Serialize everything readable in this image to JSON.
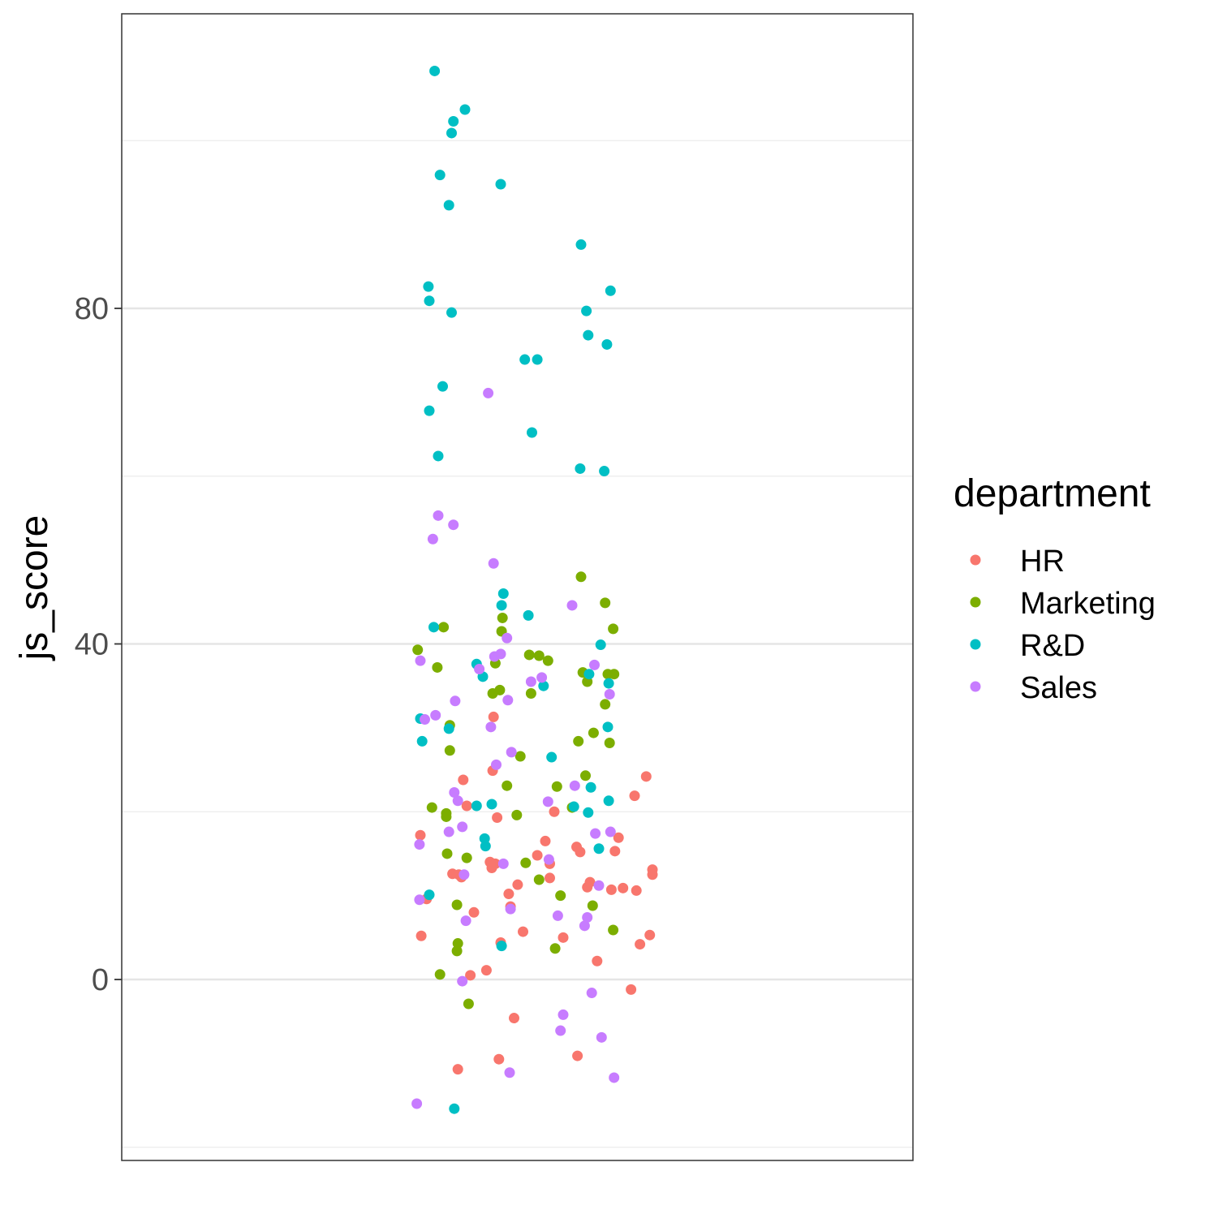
{
  "chart_data": {
    "type": "scatter",
    "ylabel": "js_score",
    "xlabel": "",
    "ylim": [
      -20,
      117
    ],
    "yticks": [
      0,
      40,
      80
    ],
    "minor_gridlines": [
      -20,
      20,
      60,
      100
    ],
    "grid": true,
    "legend": {
      "title": "department",
      "position": "right"
    },
    "series": [
      {
        "name": "HR",
        "color": "#F8766D",
        "points": [
          {
            "x": 0.1,
            "y": 17.2
          },
          {
            "x": 0.17,
            "y": 9.6
          },
          {
            "x": 0.53,
            "y": 12.5
          },
          {
            "x": 0.46,
            "y": 12.6
          },
          {
            "x": 0.11,
            "y": 5.2
          },
          {
            "x": 0.58,
            "y": 23.8
          },
          {
            "x": 0.62,
            "y": 20.7
          },
          {
            "x": 0.56,
            "y": 12.2
          },
          {
            "x": 0.7,
            "y": 8.0
          },
          {
            "x": 0.66,
            "y": 0.5
          },
          {
            "x": 0.92,
            "y": 31.3
          },
          {
            "x": 0.91,
            "y": 24.9
          },
          {
            "x": 0.88,
            "y": 14.0
          },
          {
            "x": 0.94,
            "y": 13.8
          },
          {
            "x": 0.96,
            "y": 19.3
          },
          {
            "x": 0.9,
            "y": 13.3
          },
          {
            "x": 1.09,
            "y": 10.2
          },
          {
            "x": 1.11,
            "y": 8.7
          },
          {
            "x": 1.0,
            "y": 4.4
          },
          {
            "x": 0.84,
            "y": 1.1
          },
          {
            "x": 1.19,
            "y": 11.3
          },
          {
            "x": 1.25,
            "y": 5.7
          },
          {
            "x": 1.15,
            "y": -4.6
          },
          {
            "x": 0.98,
            "y": -9.5
          },
          {
            "x": 0.52,
            "y": -10.7
          },
          {
            "x": 1.41,
            "y": 14.8
          },
          {
            "x": 1.5,
            "y": 16.5
          },
          {
            "x": 1.55,
            "y": 13.8
          },
          {
            "x": 1.55,
            "y": 12.1
          },
          {
            "x": 1.6,
            "y": 20.0
          },
          {
            "x": 1.7,
            "y": 5.0
          },
          {
            "x": 1.85,
            "y": 15.8
          },
          {
            "x": 1.89,
            "y": 15.2
          },
          {
            "x": 1.97,
            "y": 11.0
          },
          {
            "x": 2.0,
            "y": 11.6
          },
          {
            "x": 1.86,
            "y": -9.1
          },
          {
            "x": 2.08,
            "y": 2.2
          },
          {
            "x": 2.24,
            "y": 10.7
          },
          {
            "x": 2.28,
            "y": 15.3
          },
          {
            "x": 2.32,
            "y": 16.9
          },
          {
            "x": 2.37,
            "y": 10.9
          },
          {
            "x": 2.46,
            "y": -1.2
          },
          {
            "x": 2.5,
            "y": 21.9
          },
          {
            "x": 2.52,
            "y": 10.6
          },
          {
            "x": 2.56,
            "y": 4.2
          },
          {
            "x": 2.63,
            "y": 24.2
          },
          {
            "x": 2.67,
            "y": 5.3
          },
          {
            "x": 2.7,
            "y": 13.1
          },
          {
            "x": 2.7,
            "y": 12.5
          }
        ]
      },
      {
        "name": "Marketing",
        "color": "#7CAE00",
        "points": [
          {
            "x": 0.07,
            "y": 39.3
          },
          {
            "x": 0.36,
            "y": 42.0
          },
          {
            "x": 0.29,
            "y": 37.2
          },
          {
            "x": 0.23,
            "y": 20.5
          },
          {
            "x": 0.43,
            "y": 30.3
          },
          {
            "x": 0.43,
            "y": 27.3
          },
          {
            "x": 0.39,
            "y": 19.8
          },
          {
            "x": 0.39,
            "y": 19.4
          },
          {
            "x": 0.4,
            "y": 15.0
          },
          {
            "x": 0.51,
            "y": 8.9
          },
          {
            "x": 0.52,
            "y": 4.3
          },
          {
            "x": 0.51,
            "y": 3.4
          },
          {
            "x": 0.32,
            "y": 0.6
          },
          {
            "x": 0.62,
            "y": 14.5
          },
          {
            "x": 0.64,
            "y": -2.9
          },
          {
            "x": 0.91,
            "y": 34.1
          },
          {
            "x": 0.94,
            "y": 37.7
          },
          {
            "x": 0.99,
            "y": 34.5
          },
          {
            "x": 1.01,
            "y": 41.5
          },
          {
            "x": 1.02,
            "y": 43.1
          },
          {
            "x": 1.07,
            "y": 23.1
          },
          {
            "x": 1.18,
            "y": 19.6
          },
          {
            "x": 1.22,
            "y": 26.6
          },
          {
            "x": 1.28,
            "y": 13.9
          },
          {
            "x": 1.32,
            "y": 38.7
          },
          {
            "x": 1.34,
            "y": 34.1
          },
          {
            "x": 1.43,
            "y": 38.6
          },
          {
            "x": 1.43,
            "y": 11.9
          },
          {
            "x": 1.53,
            "y": 38.0
          },
          {
            "x": 1.61,
            "y": 3.7
          },
          {
            "x": 1.63,
            "y": 23.0
          },
          {
            "x": 1.67,
            "y": 10.0
          },
          {
            "x": 1.8,
            "y": 20.5
          },
          {
            "x": 1.87,
            "y": 28.4
          },
          {
            "x": 1.9,
            "y": 48.0
          },
          {
            "x": 1.92,
            "y": 36.6
          },
          {
            "x": 1.95,
            "y": 24.3
          },
          {
            "x": 1.97,
            "y": 35.5
          },
          {
            "x": 2.03,
            "y": 8.8
          },
          {
            "x": 2.04,
            "y": 29.4
          },
          {
            "x": 2.17,
            "y": 44.9
          },
          {
            "x": 2.17,
            "y": 32.8
          },
          {
            "x": 2.2,
            "y": 36.4
          },
          {
            "x": 2.22,
            "y": 28.2
          },
          {
            "x": 2.26,
            "y": 41.8
          },
          {
            "x": 2.27,
            "y": 36.4
          },
          {
            "x": 2.26,
            "y": 5.9
          }
        ]
      },
      {
        "name": "R&D",
        "color": "#00BFC4",
        "points": [
          {
            "x": 0.26,
            "y": 108.3
          },
          {
            "x": 0.47,
            "y": 102.3
          },
          {
            "x": 0.6,
            "y": 103.7
          },
          {
            "x": 0.45,
            "y": 100.9
          },
          {
            "x": 0.32,
            "y": 95.9
          },
          {
            "x": 0.42,
            "y": 92.3
          },
          {
            "x": 1.0,
            "y": 94.8
          },
          {
            "x": 1.9,
            "y": 87.6
          },
          {
            "x": 0.19,
            "y": 82.6
          },
          {
            "x": 0.2,
            "y": 80.9
          },
          {
            "x": 0.45,
            "y": 79.5
          },
          {
            "x": 0.35,
            "y": 70.7
          },
          {
            "x": 0.2,
            "y": 67.8
          },
          {
            "x": 0.3,
            "y": 62.4
          },
          {
            "x": 1.27,
            "y": 73.9
          },
          {
            "x": 1.41,
            "y": 73.9
          },
          {
            "x": 1.35,
            "y": 65.2
          },
          {
            "x": 1.96,
            "y": 79.7
          },
          {
            "x": 1.98,
            "y": 76.8
          },
          {
            "x": 2.23,
            "y": 82.1
          },
          {
            "x": 2.19,
            "y": 75.7
          },
          {
            "x": 1.89,
            "y": 60.9
          },
          {
            "x": 2.16,
            "y": 60.6
          },
          {
            "x": 1.03,
            "y": 46.0
          },
          {
            "x": 1.01,
            "y": 44.6
          },
          {
            "x": 0.25,
            "y": 42.0
          },
          {
            "x": 1.31,
            "y": 43.4
          },
          {
            "x": 0.73,
            "y": 37.6
          },
          {
            "x": 0.8,
            "y": 36.1
          },
          {
            "x": 0.1,
            "y": 31.1
          },
          {
            "x": 0.12,
            "y": 28.4
          },
          {
            "x": 0.42,
            "y": 29.9
          },
          {
            "x": 1.48,
            "y": 35.0
          },
          {
            "x": 1.57,
            "y": 26.5
          },
          {
            "x": 0.82,
            "y": 16.8
          },
          {
            "x": 0.83,
            "y": 15.9
          },
          {
            "x": 0.73,
            "y": 20.7
          },
          {
            "x": 0.9,
            "y": 20.9
          },
          {
            "x": 1.01,
            "y": 4.0
          },
          {
            "x": 0.2,
            "y": 10.1
          },
          {
            "x": 0.48,
            "y": -15.4
          },
          {
            "x": 1.99,
            "y": 36.4
          },
          {
            "x": 2.12,
            "y": 39.9
          },
          {
            "x": 2.2,
            "y": 30.1
          },
          {
            "x": 2.21,
            "y": 35.3
          },
          {
            "x": 1.82,
            "y": 20.6
          },
          {
            "x": 1.98,
            "y": 19.9
          },
          {
            "x": 2.01,
            "y": 22.9
          },
          {
            "x": 2.21,
            "y": 21.3
          },
          {
            "x": 2.1,
            "y": 15.6
          }
        ]
      },
      {
        "name": "Sales",
        "color": "#C77CFF",
        "points": [
          {
            "x": 0.86,
            "y": 69.9
          },
          {
            "x": 0.3,
            "y": 55.3
          },
          {
            "x": 0.24,
            "y": 52.5
          },
          {
            "x": 0.47,
            "y": 54.2
          },
          {
            "x": 0.92,
            "y": 49.6
          },
          {
            "x": 0.93,
            "y": 38.5
          },
          {
            "x": 1.0,
            "y": 38.8
          },
          {
            "x": 1.07,
            "y": 40.7
          },
          {
            "x": 1.08,
            "y": 33.3
          },
          {
            "x": 0.76,
            "y": 37.0
          },
          {
            "x": 0.49,
            "y": 33.2
          },
          {
            "x": 0.27,
            "y": 31.5
          },
          {
            "x": 0.1,
            "y": 38.0
          },
          {
            "x": 0.15,
            "y": 31.0
          },
          {
            "x": 0.95,
            "y": 25.6
          },
          {
            "x": 0.89,
            "y": 30.1
          },
          {
            "x": 1.12,
            "y": 27.1
          },
          {
            "x": 1.34,
            "y": 35.5
          },
          {
            "x": 1.46,
            "y": 36.0
          },
          {
            "x": 0.42,
            "y": 17.6
          },
          {
            "x": 0.48,
            "y": 22.3
          },
          {
            "x": 0.52,
            "y": 21.3
          },
          {
            "x": 0.57,
            "y": 18.2
          },
          {
            "x": 0.59,
            "y": 12.5
          },
          {
            "x": 0.61,
            "y": 7.0
          },
          {
            "x": 1.03,
            "y": 13.8
          },
          {
            "x": 1.11,
            "y": 8.4
          },
          {
            "x": 0.09,
            "y": 16.1
          },
          {
            "x": 0.09,
            "y": 9.5
          },
          {
            "x": 0.57,
            "y": -0.2
          },
          {
            "x": 0.06,
            "y": -14.8
          },
          {
            "x": 1.1,
            "y": -11.1
          },
          {
            "x": 1.53,
            "y": 21.2
          },
          {
            "x": 1.54,
            "y": 14.3
          },
          {
            "x": 1.64,
            "y": 7.6
          },
          {
            "x": 1.67,
            "y": -6.1
          },
          {
            "x": 1.7,
            "y": -4.2
          },
          {
            "x": 1.8,
            "y": 44.6
          },
          {
            "x": 1.83,
            "y": 23.1
          },
          {
            "x": 1.94,
            "y": 6.4
          },
          {
            "x": 1.97,
            "y": 7.4
          },
          {
            "x": 2.02,
            "y": -1.6
          },
          {
            "x": 2.05,
            "y": 37.5
          },
          {
            "x": 2.06,
            "y": 17.4
          },
          {
            "x": 2.1,
            "y": 11.2
          },
          {
            "x": 2.13,
            "y": -6.9
          },
          {
            "x": 2.22,
            "y": 34.0
          },
          {
            "x": 2.23,
            "y": 17.6
          },
          {
            "x": 2.27,
            "y": -11.7
          }
        ]
      }
    ]
  }
}
